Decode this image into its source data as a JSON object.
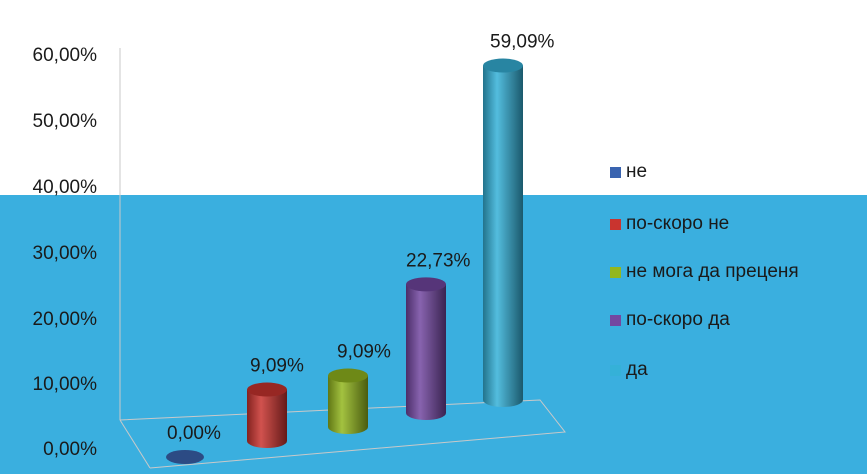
{
  "chart_data": {
    "type": "bar",
    "categories": [
      "не",
      "по-скоро не",
      "не мога да преценя",
      "по-скоро да",
      "да"
    ],
    "values": [
      0.0,
      9.09,
      9.09,
      22.73,
      59.09
    ],
    "value_labels": [
      "0,00%",
      "9,09%",
      "9,09%",
      "22,73%",
      "59,09%"
    ],
    "y_ticks": [
      "0,00%",
      "10,00%",
      "20,00%",
      "30,00%",
      "40,00%",
      "50,00%",
      "60,00%"
    ],
    "ylim": [
      0,
      60
    ],
    "legend_position": "right",
    "grid": false,
    "series_colors": [
      "#3a64b0",
      "#c9342f",
      "#93b71e",
      "#7347a1",
      "#35b1d8"
    ]
  }
}
